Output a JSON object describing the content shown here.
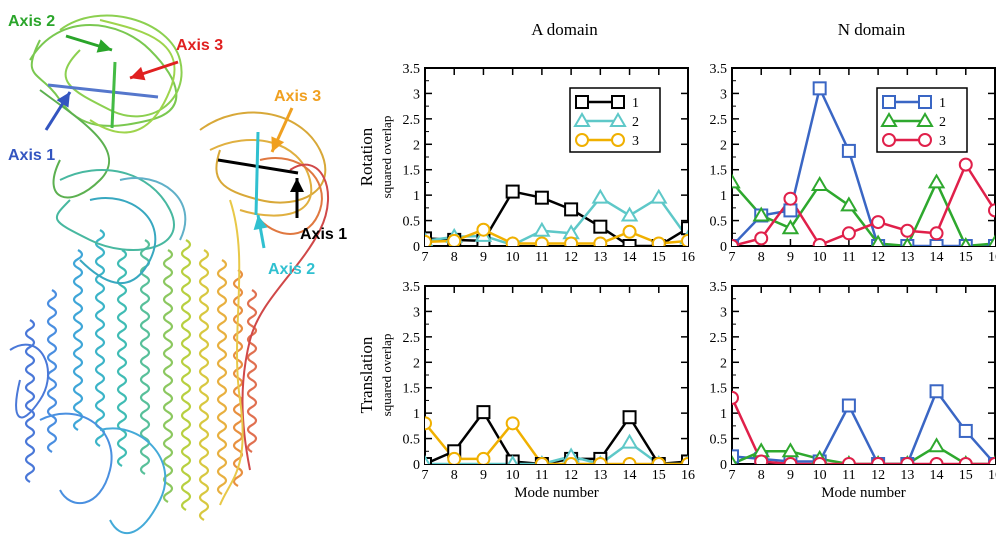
{
  "structure": {
    "axis_labels": [
      {
        "id": "axis2-green",
        "text": "Axis 2",
        "color": "#2aa52a"
      },
      {
        "id": "axis3-red",
        "text": "Axis 3",
        "color": "#e02020"
      },
      {
        "id": "axis1-blue",
        "text": "Axis 1",
        "color": "#3355c0"
      },
      {
        "id": "axis3-orange",
        "text": "Axis 3",
        "color": "#f0a020"
      },
      {
        "id": "axis1-black",
        "text": "Axis 1",
        "color": "#000000"
      },
      {
        "id": "axis2-cyan",
        "text": "Axis 2",
        "color": "#30c0d0"
      }
    ]
  },
  "colors": {
    "black": "#000000",
    "cyan": "#5ec8c8",
    "orange": "#f0b000",
    "blue": "#3a66c4",
    "green": "#2ea82e",
    "red": "#e0204a"
  },
  "chart_data": [
    {
      "type": "line",
      "panel": "rotation-a",
      "title": "A domain",
      "ylabel_main": "Rotation",
      "ylabel_sub": "squared overlap",
      "xlabel": "",
      "x": [
        7,
        8,
        9,
        10,
        11,
        12,
        13,
        14,
        15,
        16
      ],
      "xticks": [
        "7",
        "8",
        "9",
        "10",
        "11",
        "12",
        "13",
        "14",
        "15",
        "16"
      ],
      "yticks": [
        "0",
        "0.5",
        "1",
        "1.5",
        "2",
        "2.5",
        "3",
        "3.5"
      ],
      "ylim": [
        0,
        3.5
      ],
      "legend": "top-right",
      "series": [
        {
          "name": "1",
          "marker": "square",
          "color": "#000000",
          "values": [
            0.15,
            0.12,
            0.1,
            1.07,
            0.95,
            0.72,
            0.38,
            0.0,
            0.0,
            0.35
          ]
        },
        {
          "name": "2",
          "marker": "triangle",
          "color": "#5ec8c8",
          "values": [
            0.1,
            0.18,
            0.2,
            0.02,
            0.3,
            0.25,
            0.95,
            0.6,
            0.95,
            0.15
          ]
        },
        {
          "name": "3",
          "marker": "circle",
          "color": "#f0b000",
          "values": [
            0.08,
            0.1,
            0.32,
            0.05,
            0.05,
            0.05,
            0.05,
            0.28,
            0.05,
            0.1
          ]
        }
      ]
    },
    {
      "type": "line",
      "panel": "rotation-n",
      "title": "N domain",
      "ylabel_main": "",
      "ylabel_sub": "",
      "xlabel": "",
      "x": [
        7,
        8,
        9,
        10,
        11,
        12,
        13,
        14,
        15,
        16
      ],
      "xticks": [
        "7",
        "8",
        "9",
        "10",
        "11",
        "12",
        "13",
        "14",
        "15",
        "16"
      ],
      "yticks": [
        "0",
        "0.5",
        "1",
        "1.5",
        "2",
        "2.5",
        "3",
        "3.5"
      ],
      "ylim": [
        0,
        3.5
      ],
      "legend": "top-right",
      "series": [
        {
          "name": "1",
          "marker": "square",
          "color": "#3a66c4",
          "values": [
            0.0,
            0.6,
            0.7,
            3.1,
            1.87,
            0.0,
            0.0,
            0.0,
            0.0,
            0.0
          ]
        },
        {
          "name": "2",
          "marker": "triangle",
          "color": "#2ea82e",
          "values": [
            1.25,
            0.6,
            0.35,
            1.2,
            0.8,
            0.05,
            0.0,
            1.25,
            0.0,
            0.05
          ]
        },
        {
          "name": "3",
          "marker": "circle",
          "color": "#e0204a",
          "values": [
            0.0,
            0.15,
            0.93,
            0.02,
            0.25,
            0.47,
            0.3,
            0.25,
            1.6,
            0.7
          ]
        }
      ]
    },
    {
      "type": "line",
      "panel": "translation-a",
      "title": "",
      "ylabel_main": "Translation",
      "ylabel_sub": "squared overlap",
      "xlabel": "Mode number",
      "x": [
        7,
        8,
        9,
        10,
        11,
        12,
        13,
        14,
        15,
        16
      ],
      "xticks": [
        "7",
        "8",
        "9",
        "10",
        "11",
        "12",
        "13",
        "14",
        "15",
        "16"
      ],
      "yticks": [
        "0",
        "0.5",
        "1",
        "1.5",
        "2",
        "2.5",
        "3",
        "3.5"
      ],
      "ylim": [
        0,
        3.5
      ],
      "legend": "none",
      "series": [
        {
          "name": "1",
          "marker": "square",
          "color": "#000000",
          "values": [
            0.0,
            0.25,
            1.02,
            0.05,
            0.0,
            0.1,
            0.1,
            0.92,
            0.0,
            0.05
          ]
        },
        {
          "name": "2",
          "marker": "triangle",
          "color": "#5ec8c8",
          "values": [
            0.0,
            0.0,
            0.0,
            0.0,
            0.0,
            0.15,
            0.0,
            0.42,
            0.0,
            0.0
          ]
        },
        {
          "name": "3",
          "marker": "circle",
          "color": "#f0b000",
          "values": [
            0.8,
            0.1,
            0.1,
            0.8,
            0.0,
            0.0,
            0.0,
            0.0,
            0.0,
            0.0
          ]
        }
      ]
    },
    {
      "type": "line",
      "panel": "translation-n",
      "title": "",
      "ylabel_main": "",
      "ylabel_sub": "",
      "xlabel": "Mode number",
      "x": [
        7,
        8,
        9,
        10,
        11,
        12,
        13,
        14,
        15,
        16
      ],
      "xticks": [
        "7",
        "8",
        "9",
        "10",
        "11",
        "12",
        "13",
        "14",
        "15",
        "16"
      ],
      "yticks": [
        "0",
        "0.5",
        "1",
        "1.5",
        "2",
        "2.5",
        "3",
        "3.5"
      ],
      "ylim": [
        0,
        3.5
      ],
      "legend": "none",
      "series": [
        {
          "name": "1",
          "marker": "square",
          "color": "#3a66c4",
          "values": [
            0.15,
            0.1,
            0.05,
            0.05,
            1.15,
            0.0,
            0.0,
            1.43,
            0.65,
            0.0
          ]
        },
        {
          "name": "2",
          "marker": "triangle",
          "color": "#2ea82e",
          "values": [
            0.0,
            0.25,
            0.25,
            0.1,
            0.0,
            0.0,
            0.0,
            0.35,
            0.0,
            0.0
          ]
        },
        {
          "name": "3",
          "marker": "circle",
          "color": "#e0204a",
          "values": [
            1.3,
            0.05,
            0.0,
            0.0,
            0.0,
            0.0,
            0.0,
            0.0,
            0.0,
            0.0
          ]
        }
      ]
    }
  ]
}
